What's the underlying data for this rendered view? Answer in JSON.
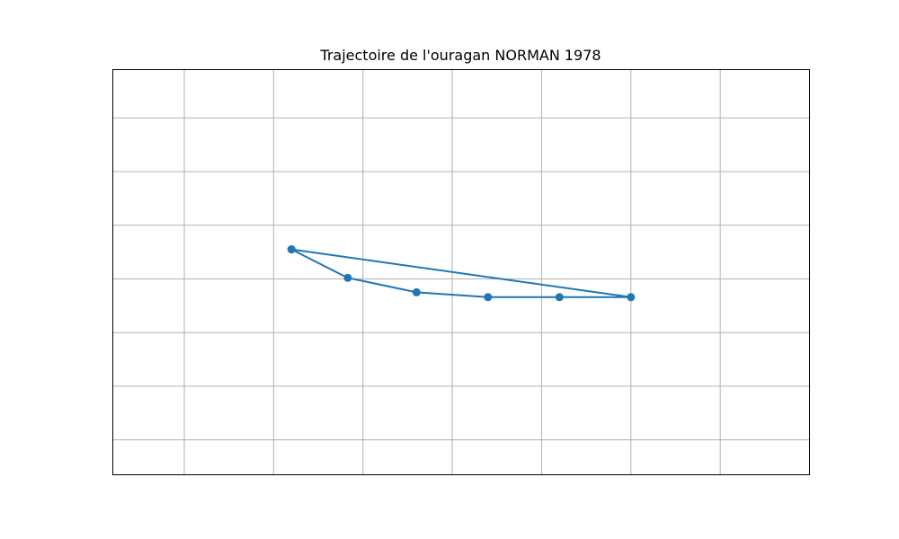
{
  "chart_data": {
    "type": "line",
    "title": "Trajectoire de l'ouragan NORMAN 1978",
    "xlabel": "",
    "ylabel": "",
    "grid": true,
    "x_gridlines": [
      -112,
      -111,
      -110,
      -109,
      -108,
      -107,
      -106
    ],
    "y_gridlines": [
      13,
      14,
      15,
      16,
      17,
      18,
      19
    ],
    "xlim": [
      -112.8,
      -105
    ],
    "ylim": [
      12.35,
      19.9
    ],
    "series": [
      {
        "x": [
          -110.8,
          -110.17,
          -109.4,
          -108.6,
          -107.8,
          -107.0,
          -110.8
        ],
        "y": [
          16.55,
          16.02,
          15.75,
          15.66,
          15.66,
          15.66,
          16.55
        ],
        "color": "#1f77b4",
        "marker": "circle"
      }
    ]
  }
}
